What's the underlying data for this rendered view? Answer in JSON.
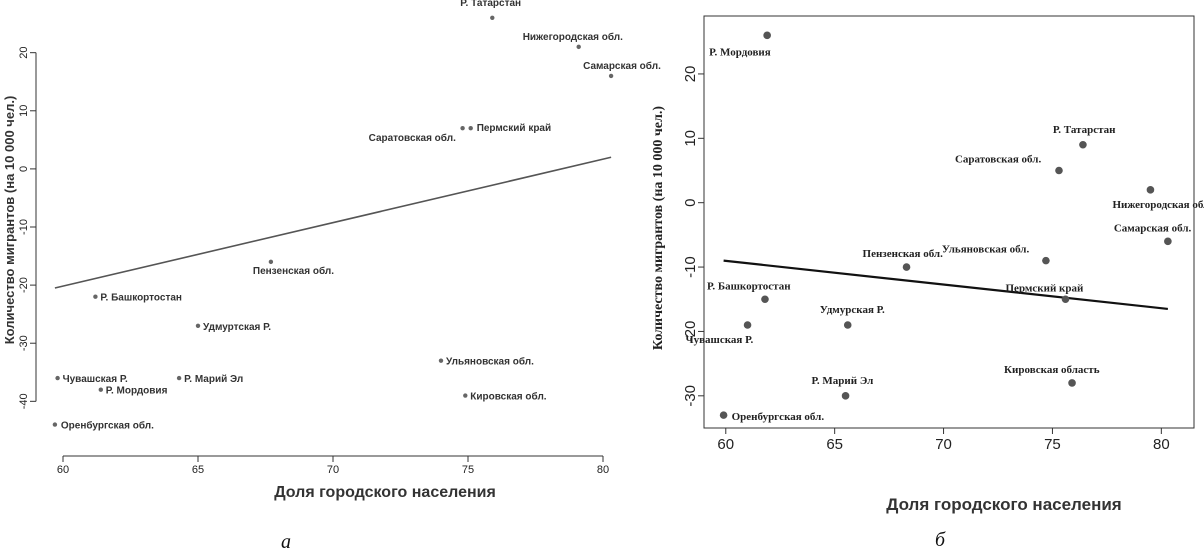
{
  "chart_data": [
    {
      "type": "scatter",
      "panel_label": "а",
      "xlabel": "Доля городского населения",
      "ylabel": "Количество мигрантов (на 10 000 чел.)",
      "xlim": [
        59,
        81
      ],
      "ylim": [
        -47,
        27
      ],
      "xticks": [
        60,
        65,
        70,
        75,
        80
      ],
      "yticks": [
        -40,
        -30,
        -20,
        -10,
        0,
        10,
        20
      ],
      "points": [
        {
          "label": "Р. Татарстан",
          "x": 75.9,
          "y": 26
        },
        {
          "label": "Нижегородская обл.",
          "x": 79.1,
          "y": 21
        },
        {
          "label": "Самарская обл.",
          "x": 80.3,
          "y": 16
        },
        {
          "label": "Пермский край",
          "x": 75.1,
          "y": 7
        },
        {
          "label": "Саратовская обл.",
          "x": 74.8,
          "y": 7
        },
        {
          "label": "Пензенская обл.",
          "x": 67.7,
          "y": -16
        },
        {
          "label": "Р. Башкортостан",
          "x": 61.2,
          "y": -22
        },
        {
          "label": "Удмуртская Р.",
          "x": 65.0,
          "y": -27
        },
        {
          "label": "Ульяновская обл.",
          "x": 74.0,
          "y": -33
        },
        {
          "label": "Чувашская Р.",
          "x": 59.8,
          "y": -36
        },
        {
          "label": "Р. Марий Эл",
          "x": 64.3,
          "y": -36
        },
        {
          "label": "Р. Мордовия",
          "x": 61.4,
          "y": -38
        },
        {
          "label": "Кировская обл.",
          "x": 74.9,
          "y": -39
        },
        {
          "label": "Оренбургская обл.",
          "x": 59.7,
          "y": -44
        }
      ],
      "trend_line": {
        "x1": 59.7,
        "y1": -20.5,
        "x2": 80.3,
        "y2": 2
      }
    },
    {
      "type": "scatter",
      "panel_label": "б",
      "xlabel": "Доля городского населения",
      "ylabel": "Количество мигрантов (на 10 000 чел.)",
      "xlim": [
        59,
        81.5
      ],
      "ylim": [
        -35,
        29
      ],
      "xticks": [
        60,
        65,
        70,
        75,
        80
      ],
      "yticks": [
        -30,
        -20,
        -10,
        0,
        10,
        20
      ],
      "points": [
        {
          "label": "Р. Мордовия",
          "x": 61.9,
          "y": 26
        },
        {
          "label": "Р. Татарстан",
          "x": 76.4,
          "y": 9
        },
        {
          "label": "Саратовская обл.",
          "x": 75.3,
          "y": 5
        },
        {
          "label": "Нижегородская обл.",
          "x": 79.5,
          "y": 2
        },
        {
          "label": "Самарская обл.",
          "x": 80.3,
          "y": -6
        },
        {
          "label": "Ульяновская обл.",
          "x": 74.7,
          "y": -9
        },
        {
          "label": "Пензенская обл.",
          "x": 68.3,
          "y": -10
        },
        {
          "label": "Р. Башкортостан",
          "x": 61.8,
          "y": -15
        },
        {
          "label": "Пермский край",
          "x": 75.6,
          "y": -15
        },
        {
          "label": "Удмурская Р.",
          "x": 65.6,
          "y": -19
        },
        {
          "label": "Чувашская Р.",
          "x": 61.0,
          "y": -19
        },
        {
          "label": "Кировская область",
          "x": 75.9,
          "y": -28
        },
        {
          "label": "Р. Марий Эл",
          "x": 65.5,
          "y": -30
        },
        {
          "label": "Оренбургская обл.",
          "x": 59.9,
          "y": -33
        }
      ],
      "trend_line": {
        "x1": 59.9,
        "y1": -9,
        "x2": 80.3,
        "y2": -16.5
      }
    }
  ]
}
